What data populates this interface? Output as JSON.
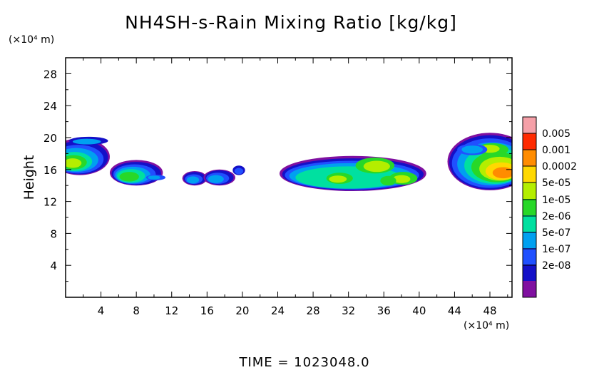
{
  "chart_data": {
    "type": "heatmap",
    "title": "NH4SH-s-Rain Mixing Ratio [kg/kg]",
    "ylabel": "Height",
    "y_unit": "(×10⁴ m)",
    "x_unit": "(×10⁴ m)",
    "xlabel": "",
    "xlim": [
      0,
      50.5
    ],
    "ylim": [
      0,
      30
    ],
    "x_ticks": [
      4,
      8,
      12,
      16,
      20,
      24,
      28,
      32,
      36,
      40,
      44,
      48
    ],
    "y_ticks": [
      4,
      8,
      12,
      16,
      20,
      24,
      28
    ],
    "x_tick_labels": [
      "4",
      "8",
      "12",
      "16",
      "20",
      "24",
      "28",
      "32",
      "36",
      "40",
      "44",
      "48"
    ],
    "y_tick_labels": [
      "4",
      "8",
      "12",
      "16",
      "20",
      "24",
      "28"
    ],
    "colorbar": {
      "labels": [
        "0.005",
        "0.001",
        "0.0002",
        "5e-05",
        "1e-05",
        "2e-06",
        "5e-07",
        "1e-07",
        "2e-08"
      ],
      "colors": [
        "#f5a0a8",
        "#ff2a00",
        "#ff8c00",
        "#ffd800",
        "#b4ee00",
        "#28d828",
        "#00e0a0",
        "#00a0f0",
        "#2050ff",
        "#1410c8",
        "#8010a0"
      ]
    },
    "regions": [
      {
        "x": [
          0.0,
          4.5
        ],
        "y": [
          14.5,
          20.0
        ],
        "max_level": "5e-05"
      },
      {
        "x": [
          5.8,
          11.5
        ],
        "y": [
          13.7,
          17.2
        ],
        "max_level": "1e-05"
      },
      {
        "x": [
          13.5,
          20.5
        ],
        "y": [
          14.0,
          16.5
        ],
        "max_level": "2e-06"
      },
      {
        "x": [
          24.5,
          41.0
        ],
        "y": [
          13.5,
          17.8
        ],
        "max_level": "1e-05"
      },
      {
        "x": [
          43.5,
          50.5
        ],
        "y": [
          13.0,
          20.5
        ],
        "max_level": "0.0002"
      }
    ],
    "footer": "TIME = 1023048.0"
  }
}
